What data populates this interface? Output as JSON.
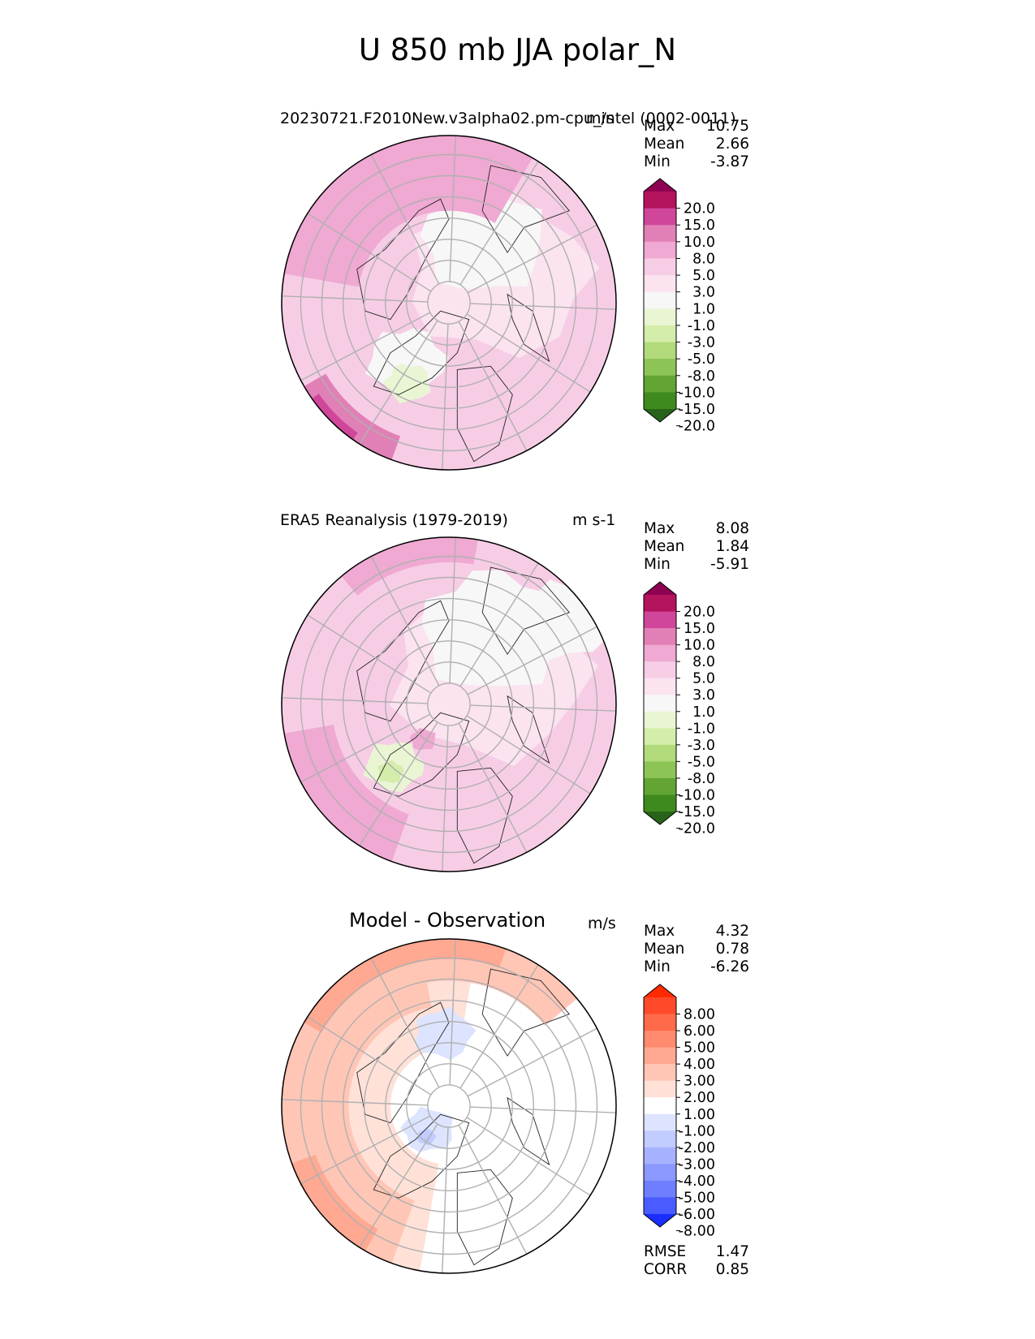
{
  "chart_data": {
    "type": "heatmap",
    "title": "U 850 mb JJA polar_N",
    "panels": [
      {
        "name": "test",
        "title": "20230721.F2010New.v3alpha02.pm-cpu_intel (0002-0011)",
        "units": "m/s",
        "stats": [
          {
            "label": "Max",
            "value": "10.75"
          },
          {
            "label": "Mean",
            "value": "2.66"
          },
          {
            "label": "Min",
            "value": "-3.87"
          }
        ],
        "colorbar": {
          "levels": [
            "20.0",
            "15.0",
            "10.0",
            "8.0",
            "5.0",
            "3.0",
            "1.0",
            "-1.0",
            "-3.0",
            "-5.0",
            "-8.0",
            "-10.0",
            "-15.0",
            "-20.0"
          ],
          "colors": [
            "#8e0152",
            "#b4135d",
            "#d0469b",
            "#e180b6",
            "#efa9d2",
            "#f7cde6",
            "#fbe3f0",
            "#f7f7f7",
            "#eaf5d4",
            "#d4edaa",
            "#b1db7a",
            "#8cc455",
            "#63a532",
            "#3f8a1f",
            "#27641a"
          ]
        }
      },
      {
        "name": "reference",
        "title": "ERA5 Reanalysis (1979-2019)",
        "units": "m s-1",
        "stats": [
          {
            "label": "Max",
            "value": "8.08"
          },
          {
            "label": "Mean",
            "value": "1.84"
          },
          {
            "label": "Min",
            "value": "-5.91"
          }
        ],
        "colorbar": {
          "levels": [
            "20.0",
            "15.0",
            "10.0",
            "8.0",
            "5.0",
            "3.0",
            "1.0",
            "-1.0",
            "-3.0",
            "-5.0",
            "-8.0",
            "-10.0",
            "-15.0",
            "-20.0"
          ],
          "colors": [
            "#8e0152",
            "#b4135d",
            "#d0469b",
            "#e180b6",
            "#efa9d2",
            "#f7cde6",
            "#fbe3f0",
            "#f7f7f7",
            "#eaf5d4",
            "#d4edaa",
            "#b1db7a",
            "#8cc455",
            "#63a532",
            "#3f8a1f",
            "#27641a"
          ]
        }
      },
      {
        "name": "difference",
        "title": "Model - Observation",
        "units": "m/s",
        "stats": [
          {
            "label": "Max",
            "value": "4.32"
          },
          {
            "label": "Mean",
            "value": "0.78"
          },
          {
            "label": "Min",
            "value": "-6.26"
          }
        ],
        "metrics": [
          {
            "label": "RMSE",
            "value": "1.47"
          },
          {
            "label": "CORR",
            "value": "0.85"
          }
        ],
        "colorbar": {
          "levels": [
            "8.00",
            "6.00",
            "5.00",
            "4.00",
            "3.00",
            "2.00",
            "1.00",
            "-1.00",
            "-2.00",
            "-3.00",
            "-4.00",
            "-5.00",
            "-6.00",
            "-8.00"
          ],
          "colors": [
            "#ff2a00",
            "#ff4a2a",
            "#ff6a4a",
            "#ff8a6e",
            "#ffa892",
            "#ffc6b6",
            "#ffe1d8",
            "#ffffff",
            "#dde4ff",
            "#c2ccff",
            "#a6b2ff",
            "#8a98ff",
            "#6e7eff",
            "#4a5cff",
            "#1a2fff"
          ]
        }
      }
    ]
  }
}
